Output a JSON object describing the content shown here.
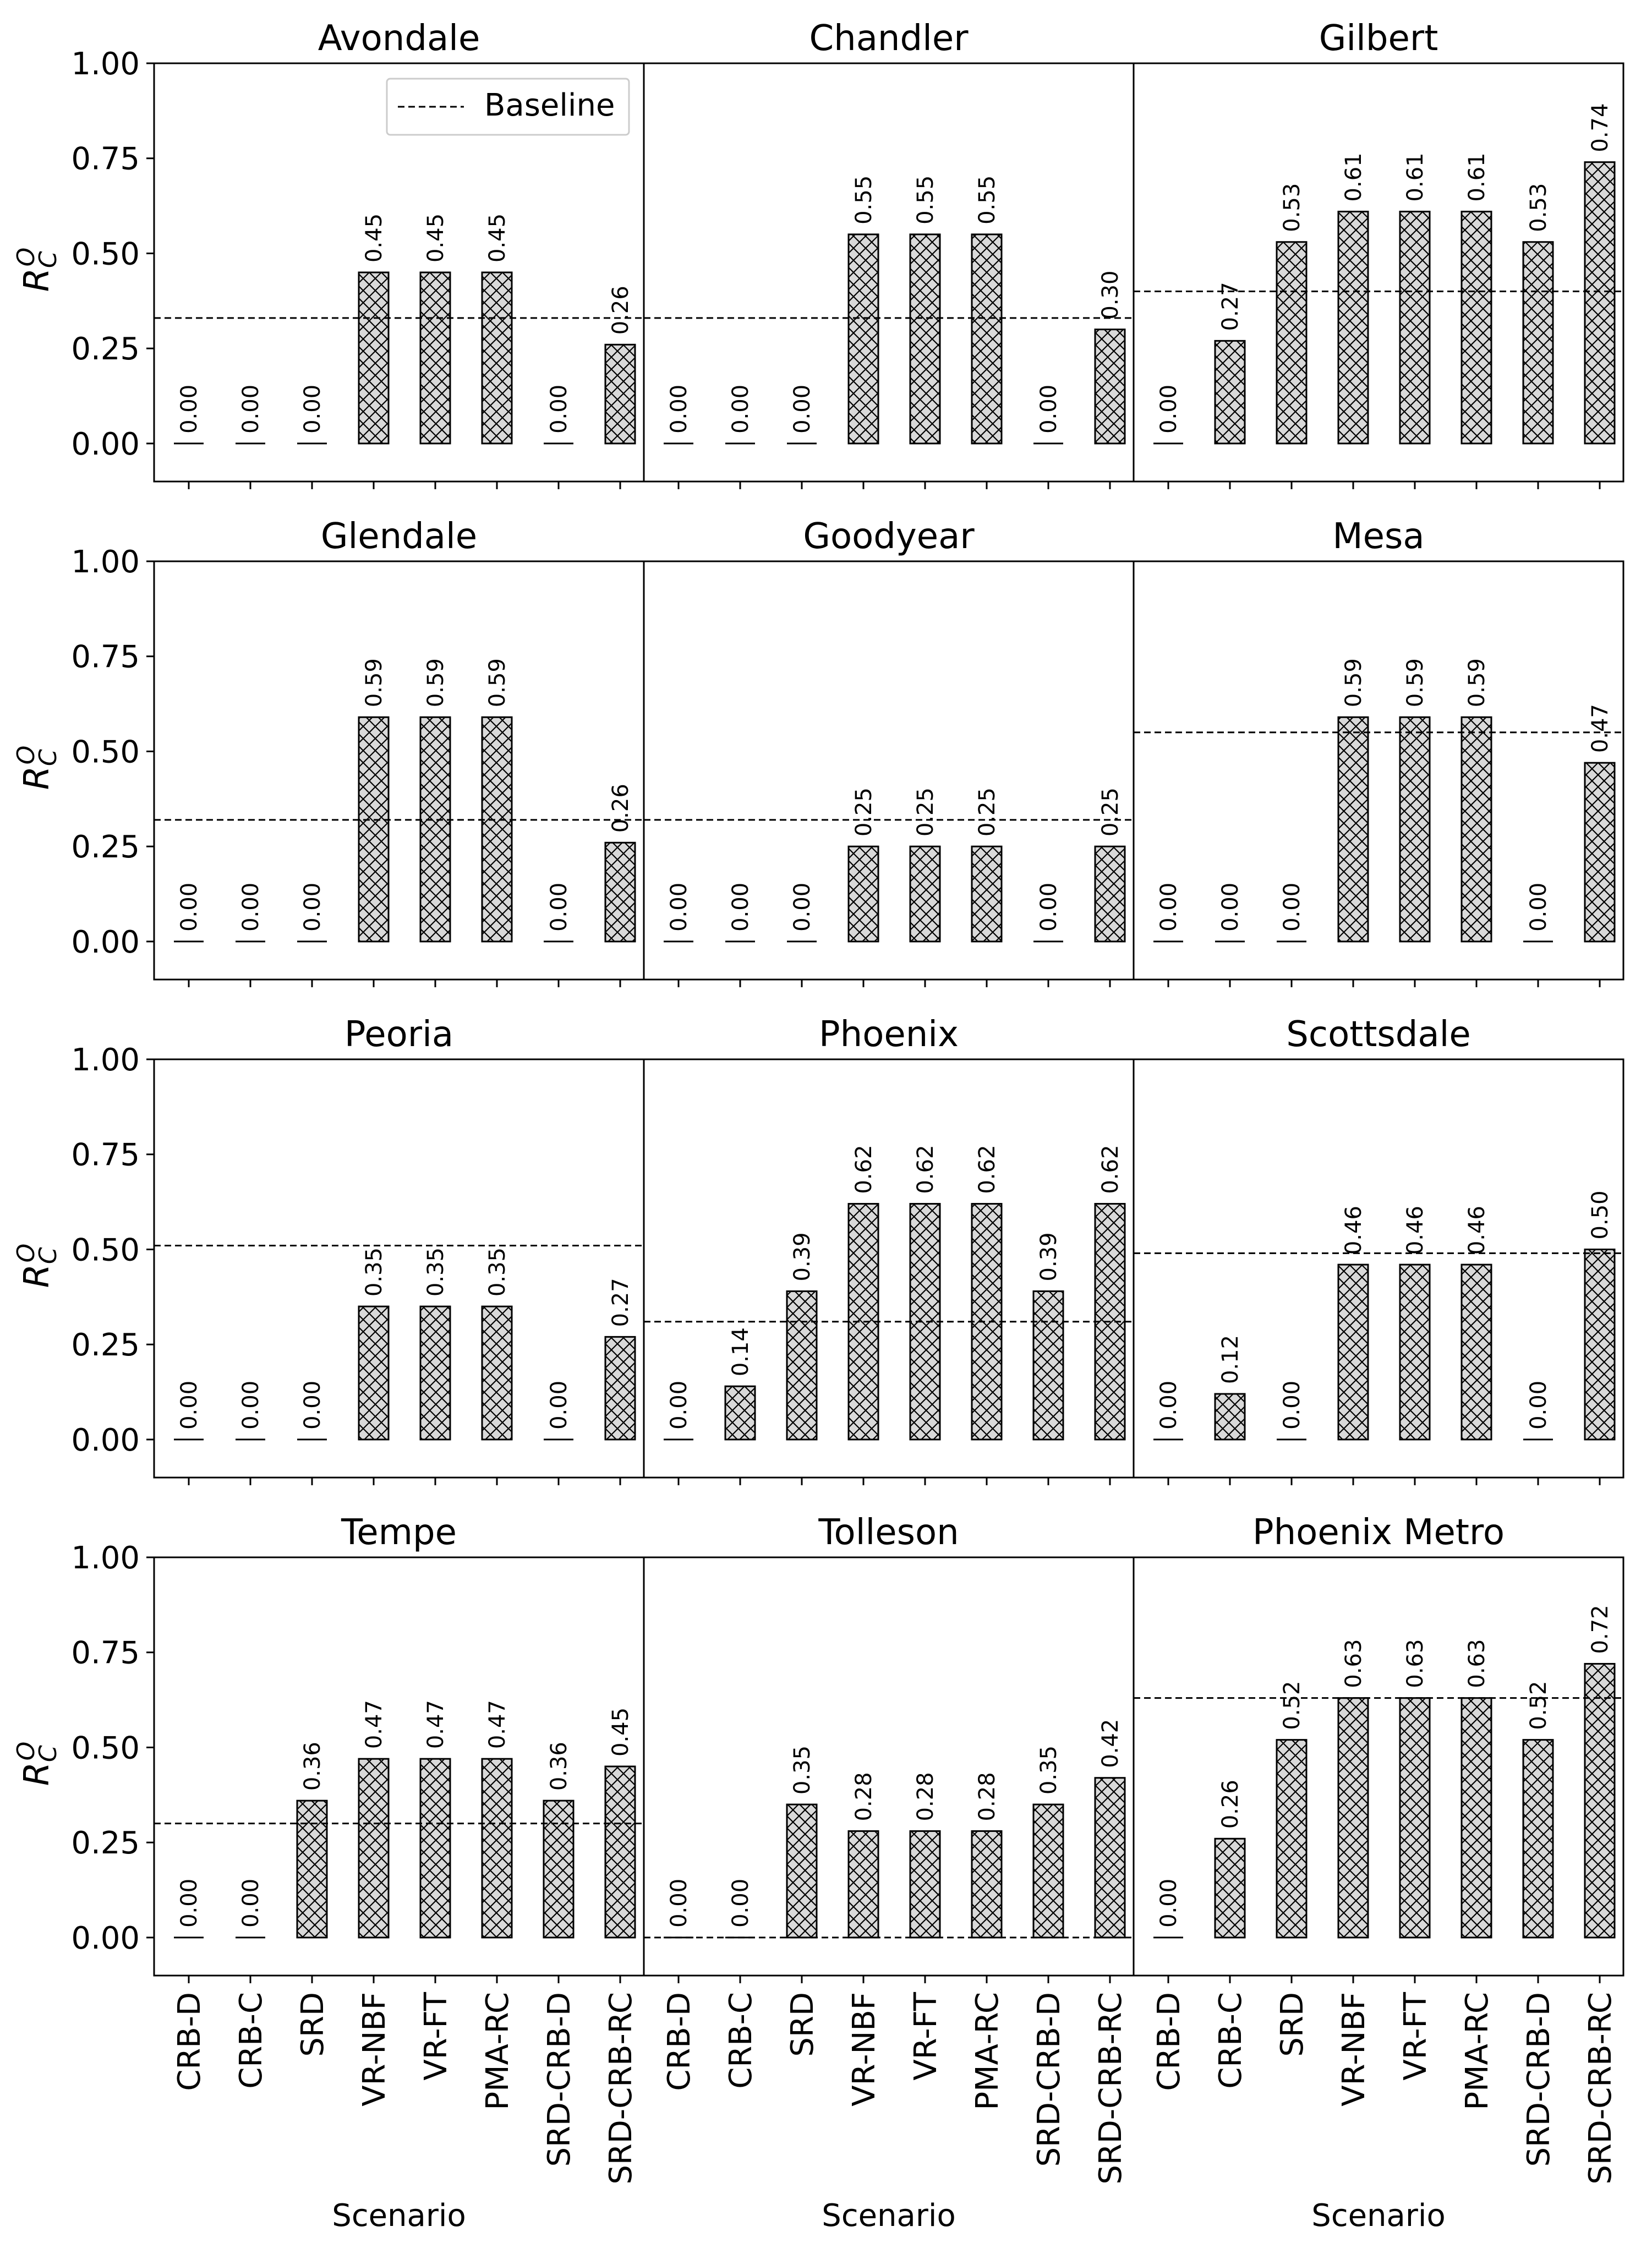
{
  "figure": {
    "legend_label": "Baseline",
    "legend_location": "upper right of first panel",
    "bar_fill": "#d9d9d9",
    "bar_hatch": "crosshatch",
    "ylabel": "R_C^O",
    "xlabel": "Scenario"
  },
  "chart_data": {
    "type": "bar",
    "layout": "4x3 small multiples, shared axes",
    "categories": [
      "CRB-D",
      "CRB-C",
      "SRD",
      "VR-NBF",
      "VR-FT",
      "PMA-RC",
      "SRD-CRB-D",
      "SRD-CRB-RC"
    ],
    "ylim": [
      -0.1,
      1.0
    ],
    "yticks": [
      0.0,
      0.25,
      0.5,
      0.75,
      1.0
    ],
    "ytick_labels": [
      "0.00",
      "0.25",
      "0.50",
      "0.75",
      "1.00"
    ],
    "grid": false,
    "panels": [
      {
        "title": "Avondale",
        "baseline": 0.33,
        "values": [
          0.0,
          0.0,
          0.0,
          0.45,
          0.45,
          0.45,
          0.0,
          0.26
        ],
        "labels": [
          "0.00",
          "0.00",
          "0.00",
          "0.45",
          "0.45",
          "0.45",
          "0.00",
          "0.26"
        ]
      },
      {
        "title": "Chandler",
        "baseline": 0.33,
        "values": [
          0.0,
          0.0,
          0.0,
          0.55,
          0.55,
          0.55,
          0.0,
          0.3
        ],
        "labels": [
          "0.00",
          "0.00",
          "0.00",
          "0.55",
          "0.55",
          "0.55",
          "0.00",
          "0.30"
        ]
      },
      {
        "title": "Gilbert",
        "baseline": 0.4,
        "values": [
          0.0,
          0.27,
          0.53,
          0.61,
          0.61,
          0.61,
          0.53,
          0.74
        ],
        "labels": [
          "0.00",
          "0.27",
          "0.53",
          "0.61",
          "0.61",
          "0.61",
          "0.53",
          "0.74"
        ]
      },
      {
        "title": "Glendale",
        "baseline": 0.32,
        "values": [
          0.0,
          0.0,
          0.0,
          0.59,
          0.59,
          0.59,
          0.0,
          0.26
        ],
        "labels": [
          "0.00",
          "0.00",
          "0.00",
          "0.59",
          "0.59",
          "0.59",
          "0.00",
          "0.26"
        ]
      },
      {
        "title": "Goodyear",
        "baseline": 0.32,
        "values": [
          0.0,
          0.0,
          0.0,
          0.25,
          0.25,
          0.25,
          0.0,
          0.25
        ],
        "labels": [
          "0.00",
          "0.00",
          "0.00",
          "0.25",
          "0.25",
          "0.25",
          "0.00",
          "0.25"
        ]
      },
      {
        "title": "Mesa",
        "baseline": 0.55,
        "values": [
          0.0,
          0.0,
          0.0,
          0.59,
          0.59,
          0.59,
          0.0,
          0.47
        ],
        "labels": [
          "0.00",
          "0.00",
          "0.00",
          "0.59",
          "0.59",
          "0.59",
          "0.00",
          "0.47"
        ]
      },
      {
        "title": "Peoria",
        "baseline": 0.51,
        "values": [
          0.0,
          0.0,
          0.0,
          0.35,
          0.35,
          0.35,
          0.0,
          0.27
        ],
        "labels": [
          "0.00",
          "0.00",
          "0.00",
          "0.35",
          "0.35",
          "0.35",
          "0.00",
          "0.27"
        ]
      },
      {
        "title": "Phoenix",
        "baseline": 0.31,
        "values": [
          0.0,
          0.14,
          0.39,
          0.62,
          0.62,
          0.62,
          0.39,
          0.62
        ],
        "labels": [
          "0.00",
          "0.14",
          "0.39",
          "0.62",
          "0.62",
          "0.62",
          "0.39",
          "0.62"
        ]
      },
      {
        "title": "Scottsdale",
        "baseline": 0.49,
        "values": [
          0.0,
          0.12,
          0.0,
          0.46,
          0.46,
          0.46,
          0.0,
          0.5
        ],
        "labels": [
          "0.00",
          "0.12",
          "0.00",
          "0.46",
          "0.46",
          "0.46",
          "0.00",
          "0.50"
        ]
      },
      {
        "title": "Tempe",
        "baseline": 0.3,
        "values": [
          0.0,
          0.0,
          0.36,
          0.47,
          0.47,
          0.47,
          0.36,
          0.45
        ],
        "labels": [
          "0.00",
          "0.00",
          "0.36",
          "0.47",
          "0.47",
          "0.47",
          "0.36",
          "0.45"
        ]
      },
      {
        "title": "Tolleson",
        "baseline": 0.0,
        "values": [
          0.0,
          0.0,
          0.35,
          0.28,
          0.28,
          0.28,
          0.35,
          0.42
        ],
        "labels": [
          "0.00",
          "0.00",
          "0.35",
          "0.28",
          "0.28",
          "0.28",
          "0.35",
          "0.42"
        ]
      },
      {
        "title": "Phoenix Metro",
        "baseline": 0.63,
        "values": [
          0.0,
          0.26,
          0.52,
          0.63,
          0.63,
          0.63,
          0.52,
          0.72
        ],
        "labels": [
          "0.00",
          "0.26",
          "0.52",
          "0.63",
          "0.63",
          "0.63",
          "0.52",
          "0.72"
        ]
      }
    ]
  }
}
